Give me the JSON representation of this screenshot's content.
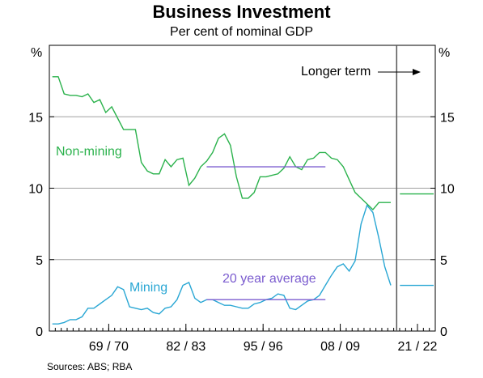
{
  "title": "Business Investment",
  "subtitle": "Per cent of nominal GDP",
  "source": "Sources:   ABS; RBA",
  "chart_data": {
    "type": "line",
    "title": "Business Investment",
    "subtitle": "Per cent of nominal GDP",
    "ylabel_left": "%",
    "ylabel_right": "%",
    "ylim": [
      0,
      20
    ],
    "yticks": [
      0,
      5,
      10,
      15
    ],
    "xlim": [
      1960,
      2025
    ],
    "xtick_labels": [
      {
        "label": "69 / 70",
        "x": 1970
      },
      {
        "label": "82 / 83",
        "x": 1983
      },
      {
        "label": "95 / 96",
        "x": 1996
      },
      {
        "label": "08 / 09",
        "x": 2009
      },
      {
        "label": "21 / 22",
        "x": 2022
      }
    ],
    "grid": "horizontal",
    "divider_x": 2018.5,
    "series": [
      {
        "name": "Non-mining",
        "color": "#2bb24c",
        "points": [
          [
            1960.5,
            17.8
          ],
          [
            1961.5,
            17.8
          ],
          [
            1962.5,
            16.6
          ],
          [
            1963.5,
            16.5
          ],
          [
            1964.5,
            16.5
          ],
          [
            1965.5,
            16.4
          ],
          [
            1966.5,
            16.6
          ],
          [
            1967.5,
            16.0
          ],
          [
            1968.5,
            16.2
          ],
          [
            1969.5,
            15.3
          ],
          [
            1970.5,
            15.7
          ],
          [
            1971.5,
            14.9
          ],
          [
            1972.5,
            14.1
          ],
          [
            1973.5,
            14.1
          ],
          [
            1974.5,
            14.1
          ],
          [
            1975.5,
            11.8
          ],
          [
            1976.5,
            11.2
          ],
          [
            1977.5,
            11.0
          ],
          [
            1978.5,
            11.0
          ],
          [
            1979.5,
            12.0
          ],
          [
            1980.5,
            11.5
          ],
          [
            1981.5,
            12.0
          ],
          [
            1982.5,
            12.1
          ],
          [
            1983.5,
            10.2
          ],
          [
            1984.5,
            10.7
          ],
          [
            1985.5,
            11.5
          ],
          [
            1986.5,
            11.9
          ],
          [
            1987.5,
            12.5
          ],
          [
            1988.5,
            13.5
          ],
          [
            1989.5,
            13.8
          ],
          [
            1990.5,
            13.0
          ],
          [
            1991.5,
            10.8
          ],
          [
            1992.5,
            9.3
          ],
          [
            1993.5,
            9.3
          ],
          [
            1994.5,
            9.7
          ],
          [
            1995.5,
            10.8
          ],
          [
            1996.5,
            10.8
          ],
          [
            1997.5,
            10.9
          ],
          [
            1998.5,
            11.0
          ],
          [
            1999.5,
            11.4
          ],
          [
            2000.5,
            12.2
          ],
          [
            2001.5,
            11.5
          ],
          [
            2002.5,
            11.3
          ],
          [
            2003.5,
            12.0
          ],
          [
            2004.5,
            12.1
          ],
          [
            2005.5,
            12.5
          ],
          [
            2006.5,
            12.5
          ],
          [
            2007.5,
            12.1
          ],
          [
            2008.5,
            12.0
          ],
          [
            2009.5,
            11.5
          ],
          [
            2010.5,
            10.6
          ],
          [
            2011.5,
            9.7
          ],
          [
            2012.5,
            9.3
          ],
          [
            2013.5,
            8.9
          ],
          [
            2014.5,
            8.5
          ],
          [
            2015.5,
            9.0
          ],
          [
            2016.5,
            9.0
          ],
          [
            2017.5,
            9.0
          ]
        ],
        "longer_term": 9.6
      },
      {
        "name": "Mining",
        "color": "#2aa7d4",
        "points": [
          [
            1960.5,
            0.5
          ],
          [
            1961.5,
            0.5
          ],
          [
            1962.5,
            0.6
          ],
          [
            1963.5,
            0.8
          ],
          [
            1964.5,
            0.8
          ],
          [
            1965.5,
            1.0
          ],
          [
            1966.5,
            1.6
          ],
          [
            1967.5,
            1.6
          ],
          [
            1968.5,
            1.9
          ],
          [
            1969.5,
            2.2
          ],
          [
            1970.5,
            2.5
          ],
          [
            1971.5,
            3.1
          ],
          [
            1972.5,
            2.9
          ],
          [
            1973.5,
            1.7
          ],
          [
            1974.5,
            1.6
          ],
          [
            1975.5,
            1.5
          ],
          [
            1976.5,
            1.6
          ],
          [
            1977.5,
            1.3
          ],
          [
            1978.5,
            1.2
          ],
          [
            1979.5,
            1.6
          ],
          [
            1980.5,
            1.7
          ],
          [
            1981.5,
            2.2
          ],
          [
            1982.5,
            3.2
          ],
          [
            1983.5,
            3.4
          ],
          [
            1984.5,
            2.3
          ],
          [
            1985.5,
            2.0
          ],
          [
            1986.5,
            2.2
          ],
          [
            1987.5,
            2.2
          ],
          [
            1988.5,
            2.0
          ],
          [
            1989.5,
            1.8
          ],
          [
            1990.5,
            1.8
          ],
          [
            1991.5,
            1.7
          ],
          [
            1992.5,
            1.6
          ],
          [
            1993.5,
            1.6
          ],
          [
            1994.5,
            1.9
          ],
          [
            1995.5,
            2.0
          ],
          [
            1996.5,
            2.2
          ],
          [
            1997.5,
            2.3
          ],
          [
            1998.5,
            2.6
          ],
          [
            1999.5,
            2.5
          ],
          [
            2000.5,
            1.6
          ],
          [
            2001.5,
            1.5
          ],
          [
            2002.5,
            1.8
          ],
          [
            2003.5,
            2.1
          ],
          [
            2004.5,
            2.2
          ],
          [
            2005.5,
            2.5
          ],
          [
            2006.5,
            3.2
          ],
          [
            2007.5,
            3.9
          ],
          [
            2008.5,
            4.5
          ],
          [
            2009.5,
            4.7
          ],
          [
            2010.5,
            4.2
          ],
          [
            2011.5,
            4.9
          ],
          [
            2012.5,
            7.5
          ],
          [
            2013.5,
            8.8
          ],
          [
            2014.5,
            8.3
          ],
          [
            2015.5,
            6.5
          ],
          [
            2016.5,
            4.5
          ],
          [
            2017.5,
            3.2
          ]
        ],
        "longer_term": 3.2
      },
      {
        "name": "20 year average",
        "color": "#7b5ccf",
        "segments": [
          {
            "x0": 1986.5,
            "x1": 2006.5,
            "y": 11.5
          },
          {
            "x0": 1986.5,
            "x1": 2006.5,
            "y": 2.2
          }
        ]
      }
    ],
    "annotations": [
      {
        "text": "Non-mining",
        "color": "#2bb24c"
      },
      {
        "text": "Mining",
        "color": "#2aa7d4"
      },
      {
        "text": "20 year average",
        "color": "#7b5ccf"
      },
      {
        "text": "Longer term",
        "color": "#000000"
      }
    ]
  }
}
